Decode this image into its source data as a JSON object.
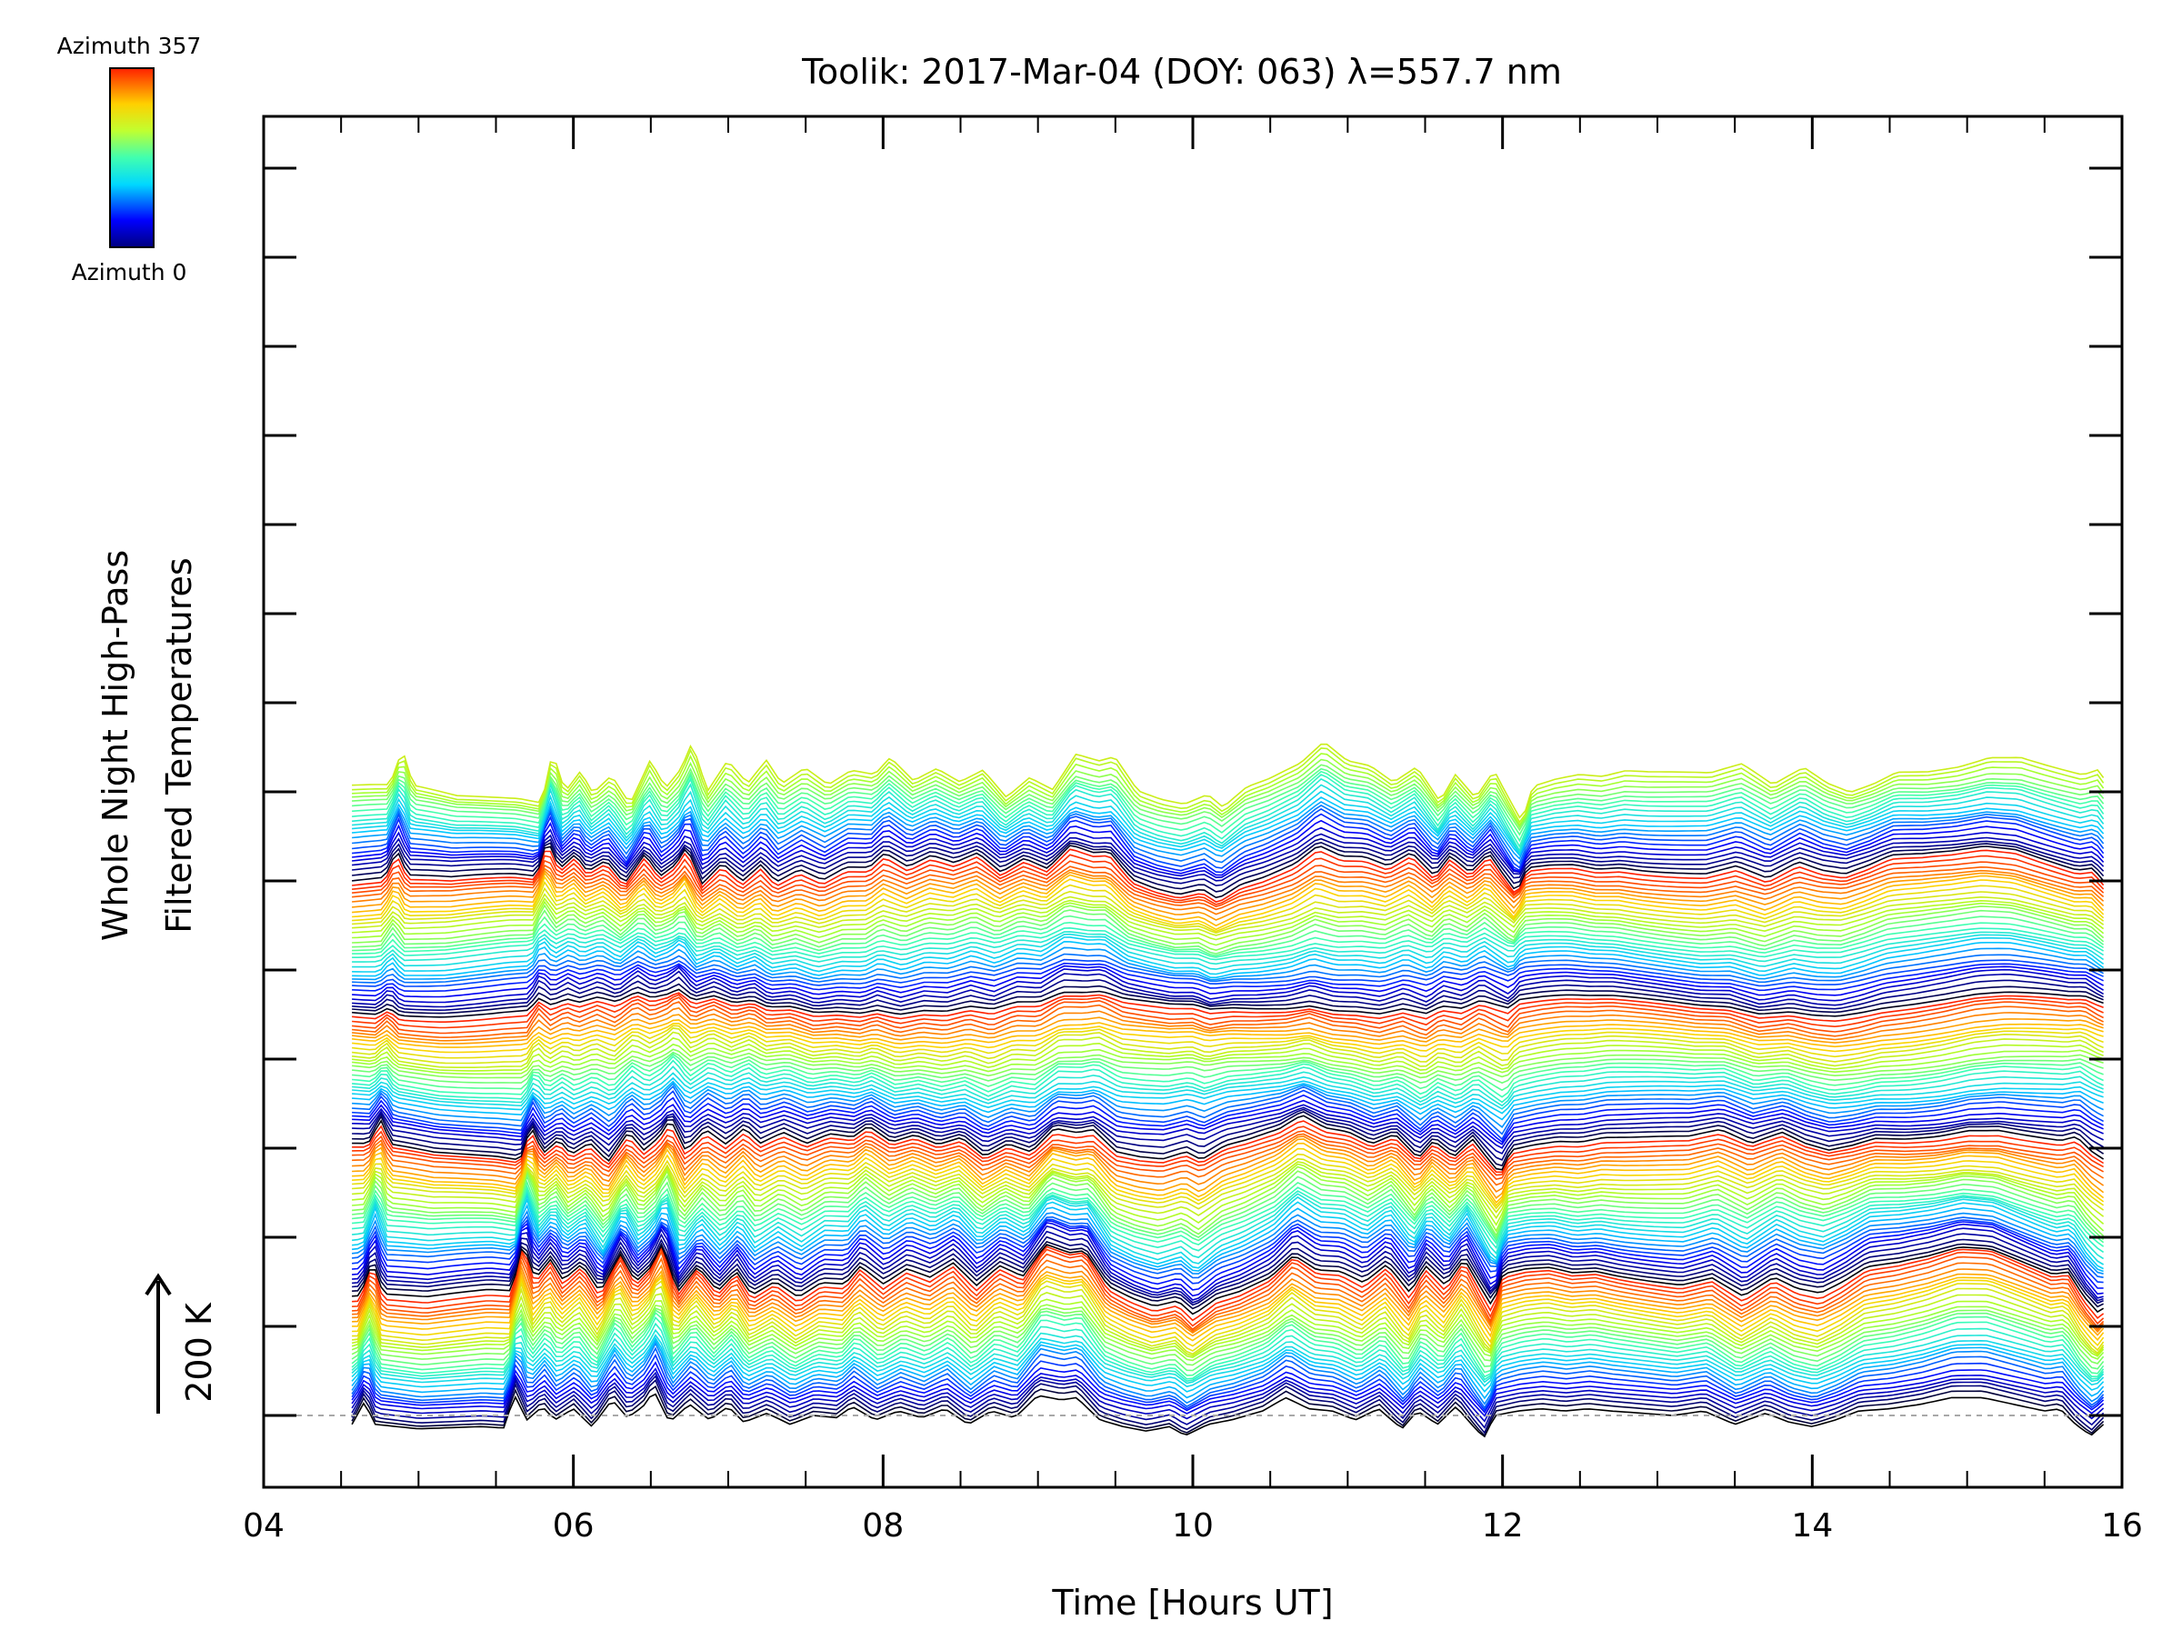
{
  "chart_data": {
    "type": "line",
    "title": "Toolik: 2017-Mar-04 (DOY: 063) λ=557.7 nm",
    "xlabel": "Time [Hours UT]",
    "ylabel_line1": "Whole Night High-Pass",
    "ylabel_line2": "Filtered Temperatures",
    "scale_bar_label": "200 K",
    "scale_bar_value_K": 200,
    "xlim": [
      4,
      16
    ],
    "x_ticks": [
      "04",
      "06",
      "08",
      "10",
      "12",
      "14",
      "16"
    ],
    "y_tick_count": 15,
    "series_count": 150,
    "series_offset_K": 9.6,
    "azimuth_range": [
      0,
      357
    ],
    "colorbar": {
      "top_label": "Azimuth 357",
      "bottom_label": "Azimuth 0",
      "colormap": "rainbow"
    },
    "data_time_range_hours": [
      4.57,
      15.88
    ],
    "baseline_profile": {
      "t": [
        4.57,
        4.65,
        4.72,
        5.0,
        5.4,
        5.55,
        5.62,
        5.7,
        5.8,
        5.88,
        6.0,
        6.12,
        6.25,
        6.35,
        6.45,
        6.52,
        6.62,
        6.75,
        6.88,
        7.0,
        7.1,
        7.25,
        7.4,
        7.55,
        7.7,
        7.8,
        7.95,
        8.1,
        8.25,
        8.4,
        8.55,
        8.7,
        8.85,
        9.0,
        9.15,
        9.25,
        9.4,
        9.55,
        9.7,
        9.85,
        9.95,
        10.1,
        10.25,
        10.45,
        10.6,
        10.75,
        10.9,
        11.05,
        11.2,
        11.35,
        11.45,
        11.58,
        11.7,
        11.8,
        11.88,
        11.95,
        12.1,
        12.25,
        12.4,
        12.55,
        12.7,
        12.9,
        13.1,
        13.3,
        13.5,
        13.7,
        13.85,
        14.0,
        14.15,
        14.3,
        14.5,
        14.7,
        14.9,
        15.1,
        15.3,
        15.5,
        15.6,
        15.7,
        15.8,
        15.88
      ],
      "temperature_K": [
        -20,
        30,
        -20,
        -30,
        -25,
        -28,
        45,
        -10,
        20,
        -10,
        15,
        -25,
        35,
        -5,
        20,
        55,
        -15,
        25,
        -10,
        20,
        -15,
        5,
        -20,
        0,
        -5,
        20,
        -10,
        10,
        -5,
        15,
        -20,
        10,
        -5,
        45,
        35,
        40,
        -10,
        -25,
        -35,
        -25,
        -45,
        -20,
        -10,
        10,
        40,
        15,
        10,
        -10,
        15,
        -30,
        10,
        -20,
        20,
        -20,
        -50,
        0,
        10,
        15,
        10,
        15,
        10,
        5,
        0,
        10,
        -20,
        5,
        -15,
        -25,
        -10,
        10,
        15,
        25,
        40,
        40,
        25,
        10,
        15,
        -20,
        -45,
        -20
      ]
    }
  }
}
